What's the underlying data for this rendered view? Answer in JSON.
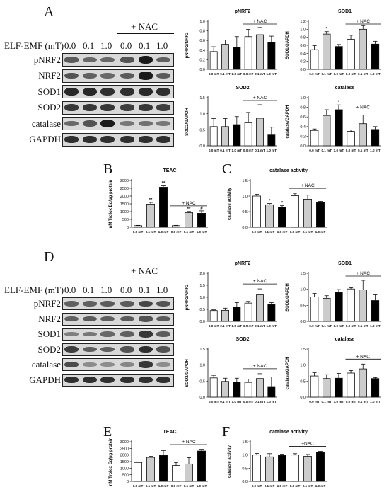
{
  "panels": {
    "A": "A",
    "B": "B",
    "C": "C",
    "D": "D",
    "E": "E",
    "F": "F"
  },
  "blots": [
    {
      "id": "A",
      "condition_label": "ELF-EMF (mT)",
      "nac_label": "+ NAC",
      "lane_labels": [
        "0.0",
        "0.1",
        "1.0",
        "0.0",
        "0.1",
        "1.0"
      ],
      "rows": [
        {
          "name": "pNRF2",
          "intensity": [
            0.55,
            0.45,
            0.45,
            0.6,
            1.0,
            0.5
          ]
        },
        {
          "name": "NRF2",
          "intensity": [
            0.6,
            0.5,
            0.45,
            0.55,
            1.0,
            0.55
          ]
        },
        {
          "name": "SOD1",
          "intensity": [
            0.9,
            0.9,
            0.85,
            0.85,
            0.9,
            0.85
          ]
        },
        {
          "name": "SOD2",
          "intensity": [
            0.8,
            0.8,
            0.8,
            0.75,
            0.8,
            0.75
          ]
        },
        {
          "name": "catalase",
          "intensity": [
            0.45,
            0.6,
            1.0,
            0.35,
            0.4,
            0.35
          ]
        },
        {
          "name": "GAPDH",
          "intensity": [
            0.85,
            0.85,
            0.85,
            0.85,
            0.85,
            0.85
          ]
        }
      ]
    },
    {
      "id": "D",
      "condition_label": "ELF-EMF (mT)",
      "nac_label": "+ NAC",
      "lane_labels": [
        "0.0",
        "0.1",
        "1.0",
        "0.0",
        "0.1",
        "1.0"
      ],
      "rows": [
        {
          "name": "pNRF2",
          "intensity": [
            0.5,
            0.5,
            0.55,
            0.55,
            0.7,
            0.6
          ]
        },
        {
          "name": "NRF2",
          "intensity": [
            0.5,
            0.55,
            0.5,
            0.55,
            0.6,
            0.55
          ]
        },
        {
          "name": "SOD1",
          "intensity": [
            0.3,
            0.35,
            0.45,
            0.5,
            0.8,
            0.55
          ]
        },
        {
          "name": "SOD2",
          "intensity": [
            0.75,
            0.5,
            0.5,
            0.6,
            0.85,
            0.6
          ]
        },
        {
          "name": "catalase",
          "intensity": [
            0.65,
            0.2,
            0.2,
            0.25,
            0.8,
            0.2
          ]
        },
        {
          "name": "GAPDH",
          "intensity": [
            0.85,
            0.85,
            0.85,
            0.85,
            0.85,
            0.85
          ]
        }
      ]
    }
  ],
  "chart_data": [
    {
      "id": "A-pNRF2",
      "type": "bar",
      "title": "pNRF2",
      "ylabel": "pNRF2/NRF2",
      "ylim": [
        0,
        1.0
      ],
      "yticks": [
        "0.0",
        "0.2",
        "0.4",
        "0.6",
        "0.8",
        "1.0"
      ],
      "categories": [
        "0.0 mT",
        "0.1 mT",
        "1.0 mT",
        "0.0 mT",
        "0.1 mT",
        "1.0 mT"
      ],
      "values": [
        0.37,
        0.52,
        0.46,
        0.68,
        0.72,
        0.56
      ],
      "errors": [
        0.1,
        0.09,
        0.22,
        0.15,
        0.15,
        0.13
      ],
      "colors": [
        "#ffffff",
        "#cccccc",
        "#000000",
        "#ffffff",
        "#cccccc",
        "#000000"
      ],
      "stars": [
        "",
        "",
        "",
        "",
        "",
        ""
      ],
      "nac_label": "+ NAC"
    },
    {
      "id": "A-SOD1",
      "type": "bar",
      "title": "SOD1",
      "ylabel": "SOD1/GAPDH",
      "ylim": [
        0,
        1.2
      ],
      "yticks": [
        "0.0",
        "0.2",
        "0.4",
        "0.6",
        "0.8",
        "1.0",
        "1.2"
      ],
      "categories": [
        "0.0 mT",
        "0.1 mT",
        "1.0 mT",
        "0.0 mT",
        "0.1 mT",
        "1.0 mT"
      ],
      "values": [
        0.49,
        0.88,
        0.57,
        0.75,
        1.0,
        0.63
      ],
      "errors": [
        0.1,
        0.06,
        0.05,
        0.1,
        0.09,
        0.07
      ],
      "colors": [
        "#ffffff",
        "#cccccc",
        "#000000",
        "#ffffff",
        "#cccccc",
        "#000000"
      ],
      "stars": [
        "",
        "*",
        "",
        "",
        "",
        ""
      ],
      "nac_label": "+ NAC"
    },
    {
      "id": "A-SOD2",
      "type": "bar",
      "title": "SOD2",
      "ylabel": "SOD2/GAPDH",
      "ylim": [
        0,
        1.5
      ],
      "yticks": [
        "0.0",
        "0.5",
        "1.0",
        "1.5"
      ],
      "categories": [
        "0.0 mT",
        "0.1 mT",
        "1.0 mT",
        "0.0 mT",
        "0.1 mT",
        "1.0 mT"
      ],
      "values": [
        0.6,
        0.6,
        0.66,
        0.72,
        0.86,
        0.36
      ],
      "errors": [
        0.25,
        0.25,
        0.25,
        0.32,
        0.42,
        0.22
      ],
      "colors": [
        "#ffffff",
        "#cccccc",
        "#000000",
        "#ffffff",
        "#cccccc",
        "#000000"
      ],
      "stars": [
        "",
        "",
        "",
        "",
        "",
        ""
      ],
      "nac_label": "+ NAC"
    },
    {
      "id": "A-catalase",
      "type": "bar",
      "title": "catalase",
      "ylabel": "catalase/GAPDH",
      "ylim": [
        0,
        1.0
      ],
      "yticks": [
        "0.0",
        "0.2",
        "0.4",
        "0.6",
        "0.8",
        "1.0"
      ],
      "categories": [
        "0.0 mT",
        "0.1 mT",
        "1.0 mT",
        "0.0 mT",
        "0.1 mT",
        "1.0 mT"
      ],
      "values": [
        0.32,
        0.63,
        0.75,
        0.3,
        0.46,
        0.34
      ],
      "errors": [
        0.03,
        0.12,
        0.1,
        0.03,
        0.18,
        0.06
      ],
      "colors": [
        "#ffffff",
        "#cccccc",
        "#000000",
        "#ffffff",
        "#cccccc",
        "#000000"
      ],
      "stars": [
        "",
        "",
        "*",
        "",
        "",
        ""
      ],
      "nac_label": "+ NAC"
    },
    {
      "id": "B-TEAC",
      "type": "bar",
      "title": "TEAC",
      "ylabel": "nM Trolox Eq/μg protein",
      "ylim": [
        0,
        3000
      ],
      "yticks": [
        "0",
        "500",
        "1000",
        "1500",
        "2000",
        "2500",
        "3000"
      ],
      "categories": [
        "0.0 mT",
        "0.1 mT",
        "1.0 mT",
        "0.0 mT",
        "0.1 mT",
        "1.0 mT"
      ],
      "values": [
        100,
        1480,
        2570,
        100,
        930,
        890
      ],
      "errors": [
        20,
        110,
        90,
        20,
        80,
        160
      ],
      "colors": [
        "#ffffff",
        "#cccccc",
        "#000000",
        "#ffffff",
        "#cccccc",
        "#000000"
      ],
      "stars": [
        "",
        "**",
        "**",
        "",
        "**",
        "#"
      ],
      "nac_label": "+ NAC"
    },
    {
      "id": "C-catalase-activity",
      "type": "bar",
      "title": "catalase activity",
      "ylabel": "catalase activity",
      "ylim": [
        0,
        1.5
      ],
      "yticks": [
        "0.0",
        "0.5",
        "1.0",
        "1.5"
      ],
      "categories": [
        "0.0 mT",
        "0.1 mT",
        "1.0 mT",
        "0.0 mT",
        "0.1 mT",
        "1.0 mT"
      ],
      "values": [
        1.0,
        0.72,
        0.64,
        1.01,
        0.9,
        0.79
      ],
      "errors": [
        0.06,
        0.04,
        0.05,
        0.08,
        0.13,
        0.04
      ],
      "colors": [
        "#ffffff",
        "#cccccc",
        "#000000",
        "#ffffff",
        "#cccccc",
        "#000000"
      ],
      "stars": [
        "",
        "*",
        "*",
        "",
        "",
        ""
      ],
      "nac_label": "+ NAC"
    },
    {
      "id": "D-pNRF2",
      "type": "bar",
      "title": "pNRF2",
      "ylabel": "pNRF2/NRF2",
      "ylim": [
        0,
        2.0
      ],
      "yticks": [
        "0.0",
        "0.5",
        "1.0",
        "1.5",
        "2.0"
      ],
      "categories": [
        "0.0 mT",
        "0.1 mT",
        "1.0 mT",
        "0.0 mT",
        "0.1 mT",
        "1.0 mT"
      ],
      "values": [
        0.45,
        0.46,
        0.6,
        0.76,
        1.13,
        0.7
      ],
      "errors": [
        0.03,
        0.09,
        0.18,
        0.07,
        0.22,
        0.08
      ],
      "colors": [
        "#ffffff",
        "#cccccc",
        "#000000",
        "#ffffff",
        "#cccccc",
        "#000000"
      ],
      "stars": [
        "",
        "",
        "",
        "",
        "",
        ""
      ],
      "nac_label": "+ NAC"
    },
    {
      "id": "D-SOD1",
      "type": "bar",
      "title": "SOD1",
      "ylabel": "SOD1/GAPDH",
      "ylim": [
        0,
        1.5
      ],
      "yticks": [
        "0.0",
        "0.5",
        "1.0",
        "1.5"
      ],
      "categories": [
        "0.0 mT",
        "0.1 mT",
        "1.0 mT",
        "0.0 mT",
        "0.1 mT",
        "1.0 mT"
      ],
      "values": [
        0.76,
        0.72,
        0.9,
        1.01,
        0.98,
        0.65
      ],
      "errors": [
        0.11,
        0.08,
        0.09,
        0.04,
        0.3,
        0.2
      ],
      "colors": [
        "#ffffff",
        "#cccccc",
        "#000000",
        "#ffffff",
        "#cccccc",
        "#000000"
      ],
      "stars": [
        "",
        "",
        "",
        "",
        "",
        ""
      ],
      "nac_label": "+ NAC"
    },
    {
      "id": "D-SOD2",
      "type": "bar",
      "title": "SOD2",
      "ylabel": "SOD2/GAPDH",
      "ylim": [
        0,
        1.5
      ],
      "yticks": [
        "0.0",
        "0.5",
        "1.0",
        "1.5"
      ],
      "categories": [
        "0.0 mT",
        "0.1 mT",
        "1.0 mT",
        "0.0 mT",
        "0.1 mT",
        "1.0 mT"
      ],
      "values": [
        0.6,
        0.49,
        0.47,
        0.46,
        0.58,
        0.33
      ],
      "errors": [
        0.08,
        0.1,
        0.12,
        0.1,
        0.15,
        0.3
      ],
      "colors": [
        "#ffffff",
        "#cccccc",
        "#000000",
        "#ffffff",
        "#cccccc",
        "#000000"
      ],
      "stars": [
        "",
        "",
        "",
        "",
        "",
        ""
      ],
      "nac_label": "+ NAC"
    },
    {
      "id": "D-catalase",
      "type": "bar",
      "title": "catalase",
      "ylabel": "catalase/GAPDH",
      "ylim": [
        0,
        1.5
      ],
      "yticks": [
        "0.0",
        "0.5",
        "1.0",
        "1.5"
      ],
      "categories": [
        "0.0 mT",
        "0.1 mT",
        "1.0 mT",
        "0.0 mT",
        "0.1 mT",
        "1.0 mT"
      ],
      "values": [
        0.66,
        0.58,
        0.59,
        0.75,
        0.88,
        0.58
      ],
      "errors": [
        0.1,
        0.12,
        0.15,
        0.08,
        0.15,
        0.03
      ],
      "colors": [
        "#ffffff",
        "#cccccc",
        "#000000",
        "#ffffff",
        "#cccccc",
        "#000000"
      ],
      "stars": [
        "",
        "",
        "",
        "",
        "",
        ""
      ],
      "nac_label": "+ NAC"
    },
    {
      "id": "E-TEAC",
      "type": "bar",
      "title": "TEAC",
      "ylabel": "nM Trolox Eq/μg protein",
      "ylim": [
        0,
        3000
      ],
      "yticks": [
        "0",
        "500",
        "1000",
        "1500",
        "2000",
        "2500",
        "3000"
      ],
      "categories": [
        "0.0 mT",
        "0.1 mT",
        "1.0 mT",
        "0.0 mT",
        "0.1 mT",
        "1.0 mT"
      ],
      "values": [
        1430,
        1820,
        1960,
        1200,
        1320,
        2300
      ],
      "errors": [
        50,
        80,
        380,
        230,
        480,
        130
      ],
      "colors": [
        "#ffffff",
        "#cccccc",
        "#000000",
        "#ffffff",
        "#cccccc",
        "#000000"
      ],
      "stars": [
        "",
        "",
        "",
        "",
        "",
        ""
      ],
      "nac_label": "+ NAC"
    },
    {
      "id": "F-catalase-activity",
      "type": "bar",
      "title": "catalase activity",
      "ylabel": "catalase activity",
      "ylim": [
        0,
        1.5
      ],
      "yticks": [
        "0.0",
        "0.5",
        "1.0",
        "1.5"
      ],
      "categories": [
        "0.0 mT",
        "0.1 mT",
        "1.0 mT",
        "0.0 mT",
        "0.1 mT",
        "1.0 mT"
      ],
      "values": [
        1.0,
        0.93,
        0.98,
        1.0,
        0.95,
        1.1
      ],
      "errors": [
        0.06,
        0.12,
        0.05,
        0.05,
        0.07,
        0.04
      ],
      "colors": [
        "#ffffff",
        "#cccccc",
        "#000000",
        "#ffffff",
        "#cccccc",
        "#000000"
      ],
      "stars": [
        "",
        "",
        "",
        "",
        "",
        ""
      ],
      "nac_label": "+NAC"
    }
  ]
}
